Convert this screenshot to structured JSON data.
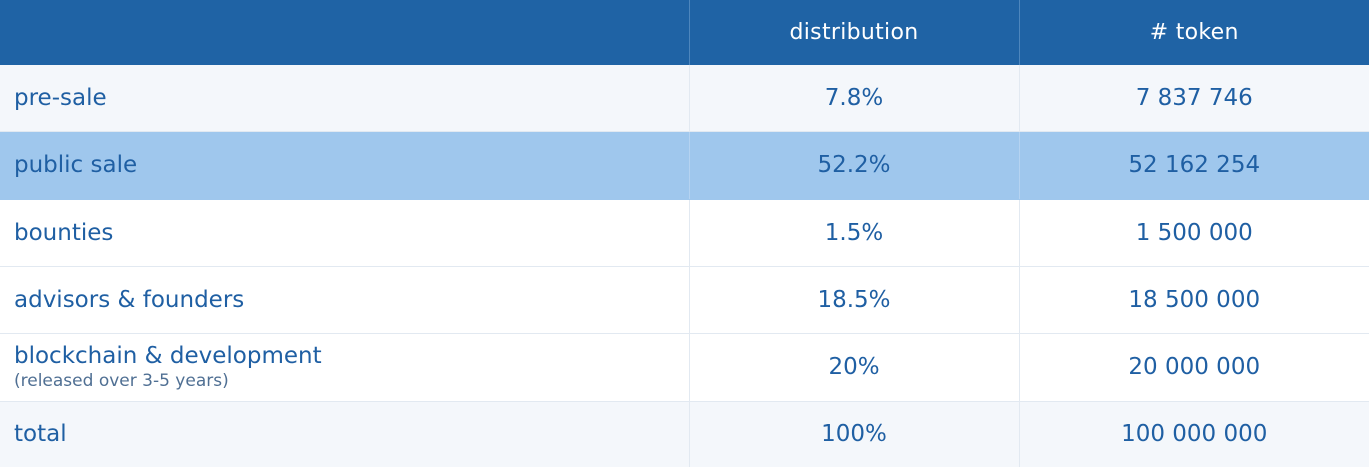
{
  "header": {
    "col1": "",
    "col2": "distribution",
    "col3": "# token"
  },
  "rows": [
    {
      "label": "pre-sale",
      "sublabel": "",
      "distribution": "7.8%",
      "token": "7 837 746"
    },
    {
      "label": "public sale",
      "sublabel": "",
      "distribution": "52.2%",
      "token": "52 162 254"
    },
    {
      "label": "bounties",
      "sublabel": "",
      "distribution": "1.5%",
      "token": "1 500 000"
    },
    {
      "label": "advisors & founders",
      "sublabel": "",
      "distribution": "18.5%",
      "token": "18 500 000"
    },
    {
      "label": "blockchain & development",
      "sublabel": "(released over 3-5 years)",
      "distribution": "20%",
      "token": "20 000 000"
    },
    {
      "label": "total",
      "sublabel": "",
      "distribution": "100%",
      "token": "100 000 000"
    }
  ],
  "colors": {
    "header_bg": "#1f63a5",
    "highlight_row_bg": "#9fc7ed",
    "text": "#1f5fa3"
  }
}
